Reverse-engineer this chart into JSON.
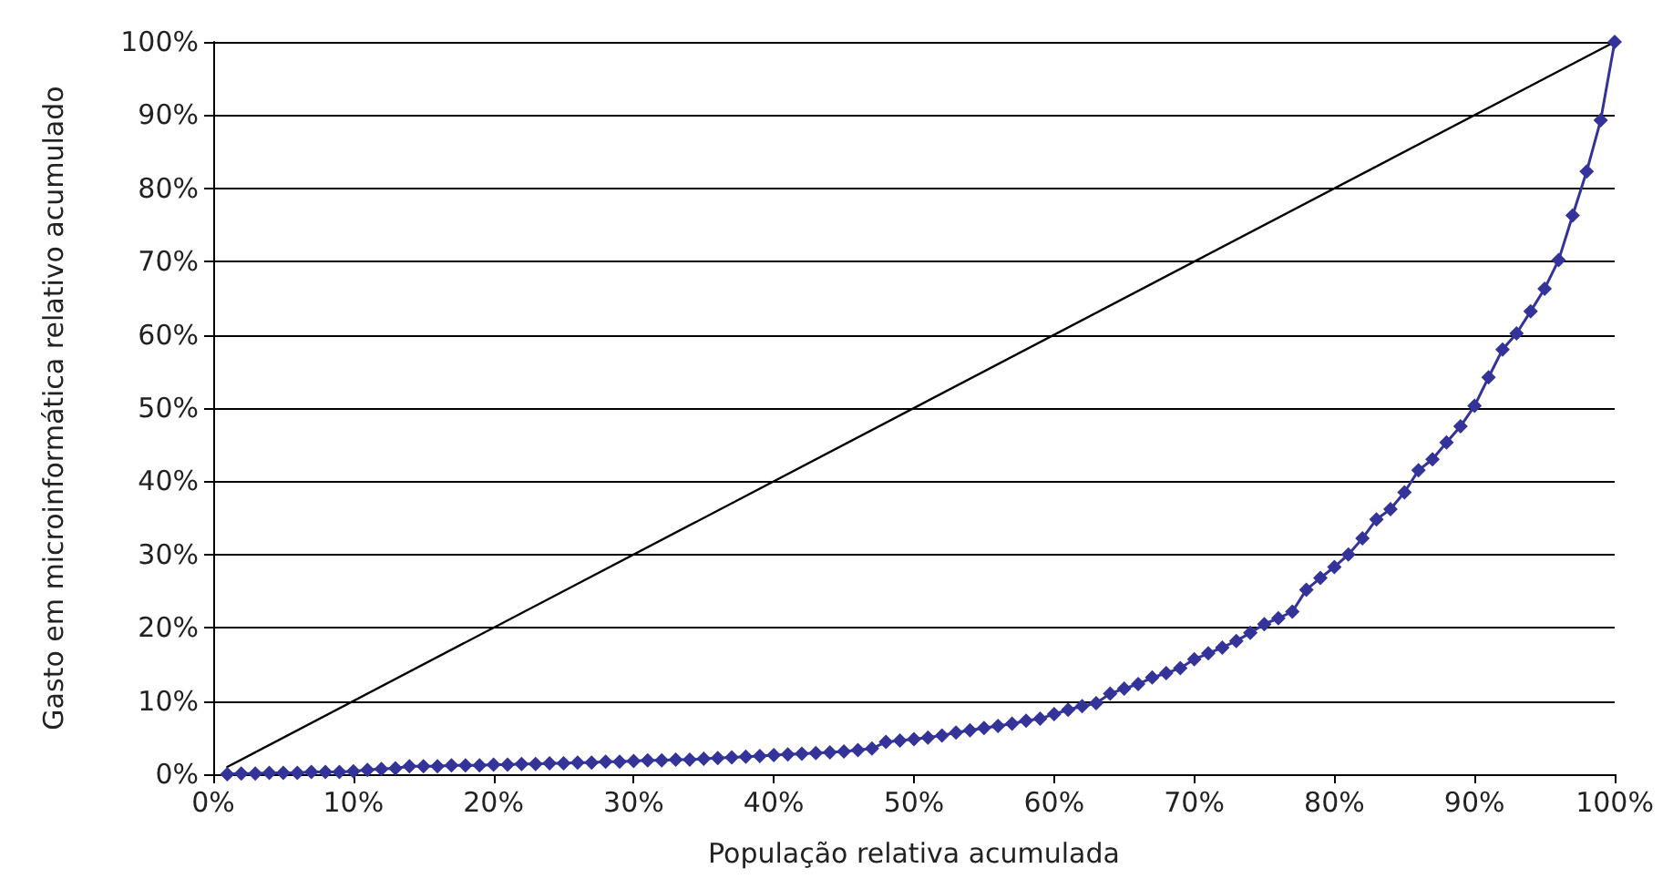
{
  "chart_data": {
    "type": "line",
    "xlabel": "População relativa acumulada",
    "ylabel": "Gasto em microinformática relativo acumulado",
    "xlim": [
      0,
      100
    ],
    "ylim": [
      0,
      100
    ],
    "xticks": [
      {
        "value": 0,
        "label": "0%"
      },
      {
        "value": 10,
        "label": "10%"
      },
      {
        "value": 20,
        "label": "20%"
      },
      {
        "value": 30,
        "label": "30%"
      },
      {
        "value": 40,
        "label": "40%"
      },
      {
        "value": 50,
        "label": "50%"
      },
      {
        "value": 60,
        "label": "60%"
      },
      {
        "value": 70,
        "label": "70%"
      },
      {
        "value": 80,
        "label": "80%"
      },
      {
        "value": 90,
        "label": "90%"
      },
      {
        "value": 100,
        "label": "100%"
      }
    ],
    "yticks": [
      {
        "value": 0,
        "label": "0%"
      },
      {
        "value": 10,
        "label": "10%"
      },
      {
        "value": 20,
        "label": "20%"
      },
      {
        "value": 30,
        "label": "30%"
      },
      {
        "value": 40,
        "label": "40%"
      },
      {
        "value": 50,
        "label": "50%"
      },
      {
        "value": 60,
        "label": "60%"
      },
      {
        "value": 70,
        "label": "70%"
      },
      {
        "value": 80,
        "label": "80%"
      },
      {
        "value": 90,
        "label": "90%"
      },
      {
        "value": 100,
        "label": "100%"
      }
    ],
    "grid": "y",
    "series": [
      {
        "color": "#000000",
        "marker": "none",
        "x": [
          1,
          100
        ],
        "values": [
          1,
          100
        ]
      },
      {
        "color": "#333399",
        "marker": "diamond",
        "x": [
          1,
          2,
          3,
          4,
          5,
          6,
          7,
          8,
          9,
          10,
          11,
          12,
          13,
          14,
          15,
          16,
          17,
          18,
          19,
          20,
          21,
          22,
          23,
          24,
          25,
          26,
          27,
          28,
          29,
          30,
          31,
          32,
          33,
          34,
          35,
          36,
          37,
          38,
          39,
          40,
          41,
          42,
          43,
          44,
          45,
          46,
          47,
          48,
          49,
          50,
          51,
          52,
          53,
          54,
          55,
          56,
          57,
          58,
          59,
          60,
          61,
          62,
          63,
          64,
          65,
          66,
          67,
          68,
          69,
          70,
          71,
          72,
          73,
          74,
          75,
          76,
          77,
          78,
          79,
          80,
          81,
          82,
          83,
          84,
          85,
          86,
          87,
          88,
          89,
          90,
          91,
          92,
          93,
          94,
          95,
          96,
          97,
          98,
          99,
          100
        ],
        "values": [
          0,
          0.1,
          0.1,
          0.2,
          0.2,
          0.2,
          0.3,
          0.3,
          0.3,
          0.4,
          0.6,
          0.7,
          0.8,
          1.1,
          1.1,
          1.1,
          1.2,
          1.2,
          1.2,
          1.3,
          1.3,
          1.4,
          1.4,
          1.5,
          1.5,
          1.6,
          1.6,
          1.7,
          1.7,
          1.8,
          1.9,
          1.9,
          2.0,
          2.0,
          2.1,
          2.2,
          2.3,
          2.4,
          2.5,
          2.6,
          2.7,
          2.8,
          2.9,
          3.0,
          3.1,
          3.3,
          3.5,
          4.4,
          4.6,
          4.8,
          5.0,
          5.3,
          5.7,
          6.0,
          6.3,
          6.6,
          6.9,
          7.3,
          7.6,
          8.2,
          8.8,
          9.3,
          9.7,
          11.0,
          11.7,
          12.3,
          13.2,
          13.8,
          14.5,
          15.7,
          16.5,
          17.3,
          18.2,
          19.3,
          20.5,
          21.3,
          22.2,
          25.2,
          26.8,
          28.3,
          30.0,
          32.2,
          34.8,
          36.2,
          38.5,
          41.5,
          43.0,
          45.3,
          47.5,
          50.3,
          54.2,
          58.0,
          60.2,
          63.2,
          66.3,
          70.2,
          76.3,
          82.3,
          89.3,
          100
        ]
      }
    ]
  }
}
